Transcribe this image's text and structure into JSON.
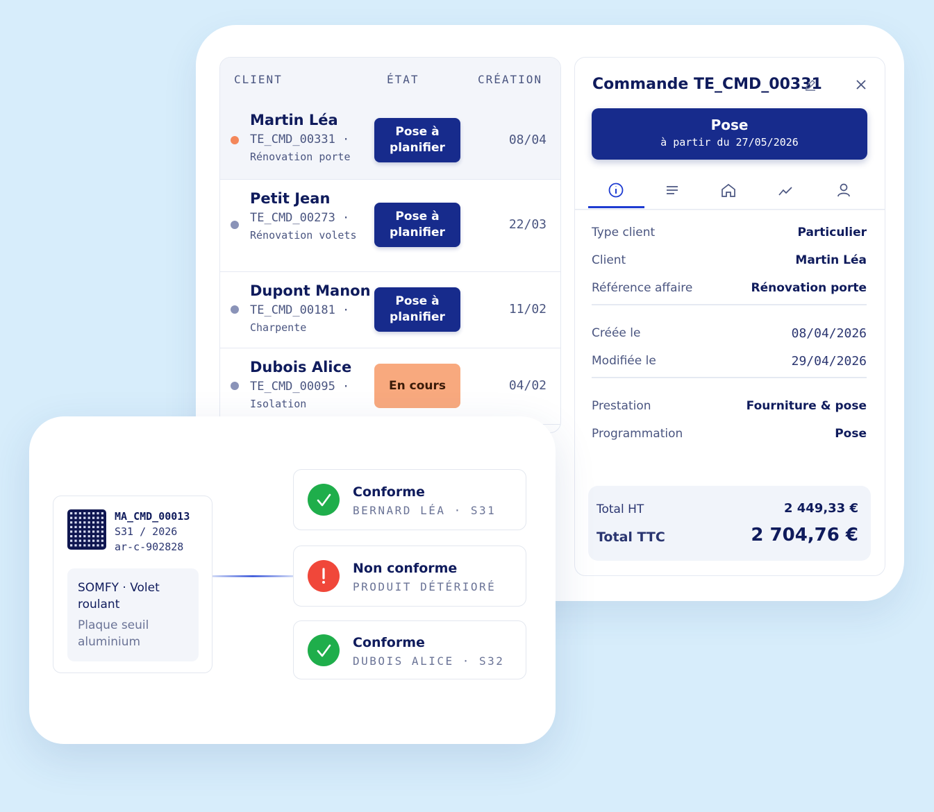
{
  "orders_table": {
    "headers": [
      "CLIENT",
      "ÉTAT",
      "CRÉATION"
    ],
    "rows": [
      {
        "client": "Martin Léa",
        "reference": "TE_CMD_00331 ·",
        "description": "Rénovation porte",
        "status": "Pose à planifier",
        "status_color": "#172b8c",
        "dot_color": "#f4875a",
        "created": "08/04"
      },
      {
        "client": "Petit Jean",
        "reference": "TE_CMD_00273 ·",
        "description": "Rénovation volets",
        "status": "Pose à planifier",
        "status_color": "#172b8c",
        "dot_color": "#8a93b8",
        "created": "22/03"
      },
      {
        "client": "Dupont Manon",
        "reference": "TE_CMD_00181 ·",
        "description": "Charpente",
        "status": "Pose à planifier",
        "status_color": "#172b8c",
        "dot_color": "#8a93b8",
        "created": "11/02"
      },
      {
        "client": "Dubois Alice",
        "reference": "TE_CMD_00095 ·",
        "description": "Isolation",
        "status": "En cours",
        "status_color": "#f8a97e",
        "dot_color": "#8a93b8",
        "created": "04/02"
      }
    ]
  },
  "order_detail": {
    "title": "Commande TE_CMD_00331",
    "banner": {
      "title": "Pose",
      "subtitle": "à partir du 27/05/2026"
    },
    "field_groups": [
      [
        {
          "label": "Type client",
          "value": "Particulier"
        },
        {
          "label": "Client",
          "value": "Martin Léa"
        },
        {
          "label": "Référence affaire",
          "value": "Rénovation porte"
        }
      ],
      [
        {
          "label": "Créée le",
          "value": "08/04/2026"
        },
        {
          "label": "Modifiée le",
          "value": "29/04/2026"
        }
      ],
      [
        {
          "label": "Prestation",
          "value": "Fourniture & pose"
        },
        {
          "label": "Programmation",
          "value": "Pose"
        }
      ]
    ],
    "totals": [
      {
        "label": "Total HT",
        "value": "2 449,33 €"
      },
      {
        "label": "Total TTC",
        "value": "2 704,76 €"
      }
    ]
  },
  "inspection": {
    "item": {
      "code": "MA_CMD_00013",
      "week": "S31 / 2026",
      "reference": "ar-c-902828",
      "product": "SOMFY · Volet roulant",
      "part": "Plaque seuil aluminium"
    },
    "results": [
      {
        "status": "Conforme",
        "detail": "BERNARD LÉA · S31",
        "color": "#1fae4b"
      },
      {
        "status": "Non conforme",
        "detail": "PRODUIT DÉTÉRIORÉ",
        "color": "#f0473a"
      },
      {
        "status": "Conforme",
        "detail": "DUBOIS ALICE · S32",
        "color": "#1fae4b"
      }
    ]
  }
}
